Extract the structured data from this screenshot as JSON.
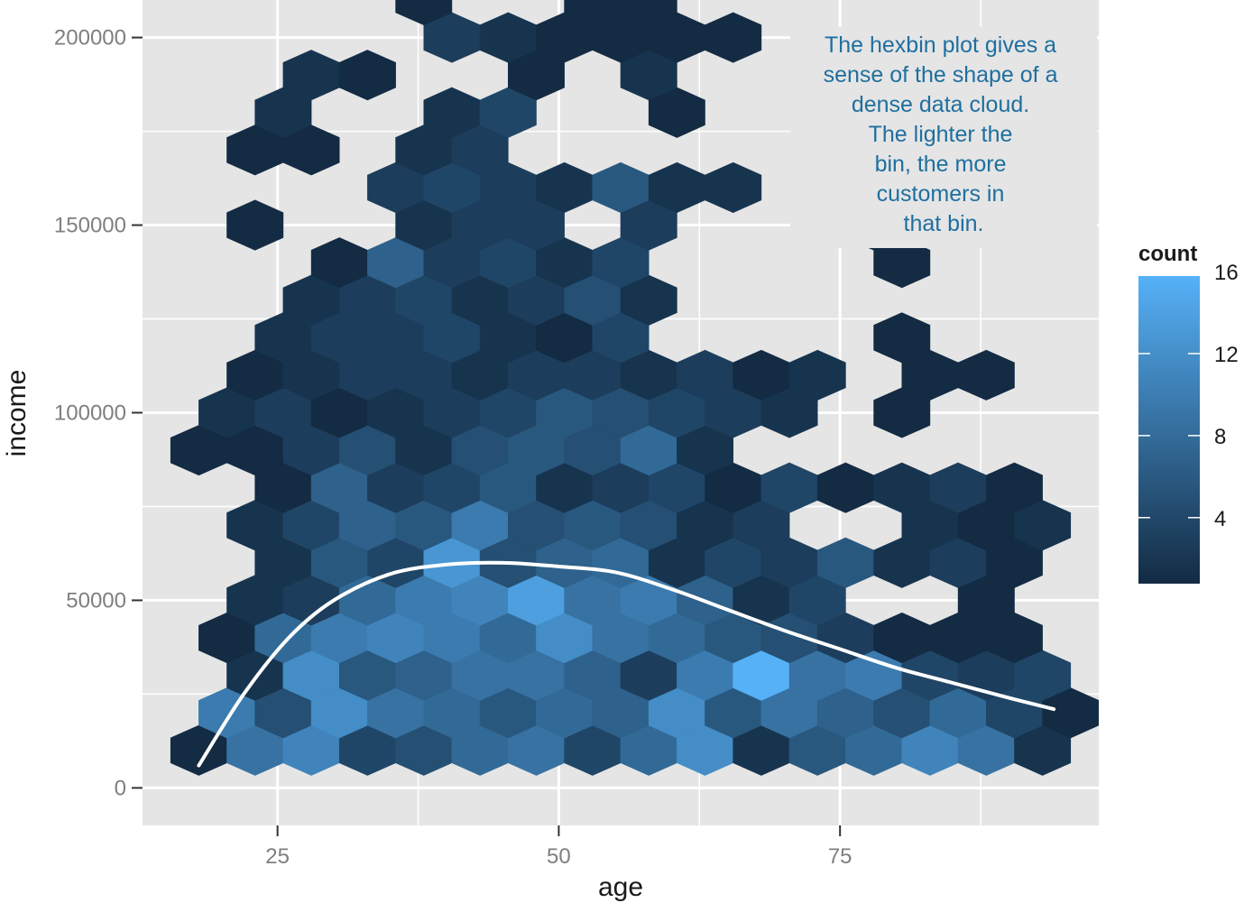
{
  "chart_data": {
    "type": "heatmap",
    "subtype": "hexbin",
    "xlabel": "age",
    "ylabel": "income",
    "xlim": [
      13,
      98
    ],
    "ylim": [
      -10000,
      210000
    ],
    "x_ticks": [
      25,
      50,
      75
    ],
    "x_tick_labels": [
      "25",
      "50",
      "75"
    ],
    "y_ticks": [
      0,
      50000,
      100000,
      150000,
      200000
    ],
    "y_tick_labels": [
      "0",
      "50000",
      "100000",
      "150000",
      "200000"
    ],
    "hex_grid": {
      "x0": 18,
      "dx": 5,
      "y0": 10000,
      "dy": 10000
    },
    "fill_scale": {
      "name": "count",
      "min": 1,
      "max": 16,
      "low_color": "#132B43",
      "high_color": "#56B1F7",
      "breaks": [
        4,
        8,
        12,
        16
      ]
    },
    "bins": [
      {
        "row": 0,
        "col": 0,
        "count": 1
      },
      {
        "row": 0,
        "col": 1,
        "count": 9
      },
      {
        "row": 0,
        "col": 2,
        "count": 11
      },
      {
        "row": 0,
        "col": 3,
        "count": 4
      },
      {
        "row": 0,
        "col": 4,
        "count": 5
      },
      {
        "row": 0,
        "col": 5,
        "count": 8
      },
      {
        "row": 0,
        "col": 6,
        "count": 9
      },
      {
        "row": 0,
        "col": 7,
        "count": 4
      },
      {
        "row": 0,
        "col": 8,
        "count": 8
      },
      {
        "row": 0,
        "col": 9,
        "count": 12
      },
      {
        "row": 0,
        "col": 10,
        "count": 2
      },
      {
        "row": 0,
        "col": 11,
        "count": 6
      },
      {
        "row": 0,
        "col": 12,
        "count": 8
      },
      {
        "row": 0,
        "col": 13,
        "count": 11
      },
      {
        "row": 0,
        "col": 14,
        "count": 9
      },
      {
        "row": 0,
        "col": 15,
        "count": 2
      },
      {
        "row": 1,
        "col": 0,
        "count": 10
      },
      {
        "row": 1,
        "col": 1,
        "count": 5
      },
      {
        "row": 1,
        "col": 2,
        "count": 12
      },
      {
        "row": 1,
        "col": 3,
        "count": 9
      },
      {
        "row": 1,
        "col": 4,
        "count": 8
      },
      {
        "row": 1,
        "col": 5,
        "count": 6
      },
      {
        "row": 1,
        "col": 6,
        "count": 8
      },
      {
        "row": 1,
        "col": 7,
        "count": 7
      },
      {
        "row": 1,
        "col": 8,
        "count": 12
      },
      {
        "row": 1,
        "col": 9,
        "count": 6
      },
      {
        "row": 1,
        "col": 10,
        "count": 9
      },
      {
        "row": 1,
        "col": 11,
        "count": 7
      },
      {
        "row": 1,
        "col": 12,
        "count": 5
      },
      {
        "row": 1,
        "col": 13,
        "count": 8
      },
      {
        "row": 1,
        "col": 14,
        "count": 4
      },
      {
        "row": 1,
        "col": 15,
        "count": 1
      },
      {
        "row": 2,
        "col": 1,
        "count": 2
      },
      {
        "row": 2,
        "col": 2,
        "count": 12
      },
      {
        "row": 2,
        "col": 3,
        "count": 6
      },
      {
        "row": 2,
        "col": 4,
        "count": 7
      },
      {
        "row": 2,
        "col": 5,
        "count": 9
      },
      {
        "row": 2,
        "col": 6,
        "count": 9
      },
      {
        "row": 2,
        "col": 7,
        "count": 7
      },
      {
        "row": 2,
        "col": 8,
        "count": 3
      },
      {
        "row": 2,
        "col": 9,
        "count": 10
      },
      {
        "row": 2,
        "col": 10,
        "count": 16
      },
      {
        "row": 2,
        "col": 11,
        "count": 9
      },
      {
        "row": 2,
        "col": 12,
        "count": 10
      },
      {
        "row": 2,
        "col": 13,
        "count": 4
      },
      {
        "row": 2,
        "col": 14,
        "count": 3
      },
      {
        "row": 2,
        "col": 15,
        "count": 4
      },
      {
        "row": 3,
        "col": 0,
        "count": 1
      },
      {
        "row": 3,
        "col": 1,
        "count": 8
      },
      {
        "row": 3,
        "col": 2,
        "count": 10
      },
      {
        "row": 3,
        "col": 3,
        "count": 11
      },
      {
        "row": 3,
        "col": 4,
        "count": 10
      },
      {
        "row": 3,
        "col": 5,
        "count": 8
      },
      {
        "row": 3,
        "col": 6,
        "count": 12
      },
      {
        "row": 3,
        "col": 7,
        "count": 9
      },
      {
        "row": 3,
        "col": 8,
        "count": 8
      },
      {
        "row": 3,
        "col": 9,
        "count": 6
      },
      {
        "row": 3,
        "col": 10,
        "count": 5
      },
      {
        "row": 3,
        "col": 11,
        "count": 3
      },
      {
        "row": 3,
        "col": 12,
        "count": 1
      },
      {
        "row": 3,
        "col": 13,
        "count": 1
      },
      {
        "row": 3,
        "col": 14,
        "count": 1
      },
      {
        "row": 4,
        "col": 1,
        "count": 2
      },
      {
        "row": 4,
        "col": 2,
        "count": 3
      },
      {
        "row": 4,
        "col": 3,
        "count": 8
      },
      {
        "row": 4,
        "col": 4,
        "count": 10
      },
      {
        "row": 4,
        "col": 5,
        "count": 11
      },
      {
        "row": 4,
        "col": 6,
        "count": 14
      },
      {
        "row": 4,
        "col": 7,
        "count": 9
      },
      {
        "row": 4,
        "col": 8,
        "count": 10
      },
      {
        "row": 4,
        "col": 9,
        "count": 7
      },
      {
        "row": 4,
        "col": 10,
        "count": 2
      },
      {
        "row": 4,
        "col": 11,
        "count": 4
      },
      {
        "row": 4,
        "col": 14,
        "count": 1
      },
      {
        "row": 5,
        "col": 1,
        "count": 2
      },
      {
        "row": 5,
        "col": 2,
        "count": 6
      },
      {
        "row": 5,
        "col": 3,
        "count": 4
      },
      {
        "row": 5,
        "col": 4,
        "count": 13
      },
      {
        "row": 5,
        "col": 5,
        "count": 5
      },
      {
        "row": 5,
        "col": 6,
        "count": 7
      },
      {
        "row": 5,
        "col": 7,
        "count": 8
      },
      {
        "row": 5,
        "col": 8,
        "count": 2
      },
      {
        "row": 5,
        "col": 9,
        "count": 4
      },
      {
        "row": 5,
        "col": 10,
        "count": 3
      },
      {
        "row": 5,
        "col": 11,
        "count": 6
      },
      {
        "row": 5,
        "col": 12,
        "count": 2
      },
      {
        "row": 5,
        "col": 13,
        "count": 3
      },
      {
        "row": 5,
        "col": 14,
        "count": 1
      },
      {
        "row": 6,
        "col": 1,
        "count": 2
      },
      {
        "row": 6,
        "col": 2,
        "count": 4
      },
      {
        "row": 6,
        "col": 3,
        "count": 7
      },
      {
        "row": 6,
        "col": 4,
        "count": 6
      },
      {
        "row": 6,
        "col": 5,
        "count": 10
      },
      {
        "row": 6,
        "col": 6,
        "count": 5
      },
      {
        "row": 6,
        "col": 7,
        "count": 6
      },
      {
        "row": 6,
        "col": 8,
        "count": 5
      },
      {
        "row": 6,
        "col": 9,
        "count": 2
      },
      {
        "row": 6,
        "col": 10,
        "count": 3
      },
      {
        "row": 6,
        "col": 13,
        "count": 2
      },
      {
        "row": 6,
        "col": 14,
        "count": 1
      },
      {
        "row": 6,
        "col": 15,
        "count": 2
      },
      {
        "row": 7,
        "col": 1,
        "count": 1
      },
      {
        "row": 7,
        "col": 2,
        "count": 7
      },
      {
        "row": 7,
        "col": 3,
        "count": 3
      },
      {
        "row": 7,
        "col": 4,
        "count": 4
      },
      {
        "row": 7,
        "col": 5,
        "count": 6
      },
      {
        "row": 7,
        "col": 6,
        "count": 2
      },
      {
        "row": 7,
        "col": 7,
        "count": 3
      },
      {
        "row": 7,
        "col": 8,
        "count": 4
      },
      {
        "row": 7,
        "col": 9,
        "count": 1
      },
      {
        "row": 7,
        "col": 10,
        "count": 4
      },
      {
        "row": 7,
        "col": 11,
        "count": 1
      },
      {
        "row": 7,
        "col": 12,
        "count": 2
      },
      {
        "row": 7,
        "col": 13,
        "count": 3
      },
      {
        "row": 7,
        "col": 14,
        "count": 1
      },
      {
        "row": 8,
        "col": 0,
        "count": 1
      },
      {
        "row": 8,
        "col": 1,
        "count": 1
      },
      {
        "row": 8,
        "col": 2,
        "count": 3
      },
      {
        "row": 8,
        "col": 3,
        "count": 5
      },
      {
        "row": 8,
        "col": 4,
        "count": 2
      },
      {
        "row": 8,
        "col": 5,
        "count": 5
      },
      {
        "row": 8,
        "col": 6,
        "count": 6
      },
      {
        "row": 8,
        "col": 7,
        "count": 5
      },
      {
        "row": 8,
        "col": 8,
        "count": 8
      },
      {
        "row": 8,
        "col": 9,
        "count": 2
      },
      {
        "row": 9,
        "col": 0,
        "count": 2
      },
      {
        "row": 9,
        "col": 1,
        "count": 3
      },
      {
        "row": 9,
        "col": 2,
        "count": 1
      },
      {
        "row": 9,
        "col": 3,
        "count": 2
      },
      {
        "row": 9,
        "col": 4,
        "count": 3
      },
      {
        "row": 9,
        "col": 5,
        "count": 4
      },
      {
        "row": 9,
        "col": 6,
        "count": 6
      },
      {
        "row": 9,
        "col": 7,
        "count": 5
      },
      {
        "row": 9,
        "col": 8,
        "count": 4
      },
      {
        "row": 9,
        "col": 9,
        "count": 3
      },
      {
        "row": 9,
        "col": 10,
        "count": 2
      },
      {
        "row": 9,
        "col": 12,
        "count": 1
      },
      {
        "row": 10,
        "col": 1,
        "count": 1
      },
      {
        "row": 10,
        "col": 2,
        "count": 2
      },
      {
        "row": 10,
        "col": 3,
        "count": 3
      },
      {
        "row": 10,
        "col": 4,
        "count": 3
      },
      {
        "row": 10,
        "col": 5,
        "count": 2
      },
      {
        "row": 10,
        "col": 6,
        "count": 3
      },
      {
        "row": 10,
        "col": 7,
        "count": 3
      },
      {
        "row": 10,
        "col": 8,
        "count": 2
      },
      {
        "row": 10,
        "col": 9,
        "count": 3
      },
      {
        "row": 10,
        "col": 10,
        "count": 1
      },
      {
        "row": 10,
        "col": 11,
        "count": 2
      },
      {
        "row": 10,
        "col": 13,
        "count": 1
      },
      {
        "row": 10,
        "col": 14,
        "count": 1
      },
      {
        "row": 11,
        "col": 1,
        "count": 2
      },
      {
        "row": 11,
        "col": 2,
        "count": 3
      },
      {
        "row": 11,
        "col": 3,
        "count": 3
      },
      {
        "row": 11,
        "col": 4,
        "count": 4
      },
      {
        "row": 11,
        "col": 5,
        "count": 2
      },
      {
        "row": 11,
        "col": 6,
        "count": 1
      },
      {
        "row": 11,
        "col": 7,
        "count": 4
      },
      {
        "row": 11,
        "col": 12,
        "count": 1
      },
      {
        "row": 12,
        "col": 2,
        "count": 2
      },
      {
        "row": 12,
        "col": 3,
        "count": 3
      },
      {
        "row": 12,
        "col": 4,
        "count": 4
      },
      {
        "row": 12,
        "col": 5,
        "count": 2
      },
      {
        "row": 12,
        "col": 6,
        "count": 3
      },
      {
        "row": 12,
        "col": 7,
        "count": 5
      },
      {
        "row": 12,
        "col": 8,
        "count": 2
      },
      {
        "row": 13,
        "col": 2,
        "count": 1
      },
      {
        "row": 13,
        "col": 3,
        "count": 7
      },
      {
        "row": 13,
        "col": 4,
        "count": 3
      },
      {
        "row": 13,
        "col": 5,
        "count": 4
      },
      {
        "row": 13,
        "col": 6,
        "count": 2
      },
      {
        "row": 13,
        "col": 7,
        "count": 4
      },
      {
        "row": 13,
        "col": 12,
        "count": 1
      },
      {
        "row": 14,
        "col": 1,
        "count": 1
      },
      {
        "row": 14,
        "col": 4,
        "count": 2
      },
      {
        "row": 14,
        "col": 5,
        "count": 3
      },
      {
        "row": 14,
        "col": 6,
        "count": 3
      },
      {
        "row": 14,
        "col": 8,
        "count": 3
      },
      {
        "row": 14,
        "col": 12,
        "count": 1
      },
      {
        "row": 15,
        "col": 3,
        "count": 3
      },
      {
        "row": 15,
        "col": 4,
        "count": 4
      },
      {
        "row": 15,
        "col": 5,
        "count": 3
      },
      {
        "row": 15,
        "col": 6,
        "count": 2
      },
      {
        "row": 15,
        "col": 7,
        "count": 6
      },
      {
        "row": 15,
        "col": 8,
        "count": 2
      },
      {
        "row": 15,
        "col": 9,
        "count": 2
      },
      {
        "row": 16,
        "col": 1,
        "count": 1
      },
      {
        "row": 16,
        "col": 2,
        "count": 1
      },
      {
        "row": 16,
        "col": 4,
        "count": 2
      },
      {
        "row": 16,
        "col": 5,
        "count": 3
      },
      {
        "row": 17,
        "col": 1,
        "count": 2
      },
      {
        "row": 17,
        "col": 4,
        "count": 2
      },
      {
        "row": 17,
        "col": 5,
        "count": 4
      },
      {
        "row": 17,
        "col": 8,
        "count": 1
      },
      {
        "row": 18,
        "col": 2,
        "count": 2
      },
      {
        "row": 18,
        "col": 3,
        "count": 1
      },
      {
        "row": 18,
        "col": 6,
        "count": 1
      },
      {
        "row": 18,
        "col": 8,
        "count": 2
      },
      {
        "row": 19,
        "col": 4,
        "count": 3
      },
      {
        "row": 19,
        "col": 5,
        "count": 2
      },
      {
        "row": 19,
        "col": 6,
        "count": 1
      },
      {
        "row": 19,
        "col": 7,
        "count": 1
      },
      {
        "row": 19,
        "col": 8,
        "count": 1
      },
      {
        "row": 19,
        "col": 9,
        "count": 1
      },
      {
        "row": 20,
        "col": 4,
        "count": 1
      },
      {
        "row": 20,
        "col": 7,
        "count": 1
      },
      {
        "row": 20,
        "col": 8,
        "count": 1
      },
      {
        "row": 21,
        "col": 2,
        "count": 1
      },
      {
        "row": 21,
        "col": 3,
        "count": 1
      },
      {
        "row": 21,
        "col": 7,
        "count": 1
      }
    ],
    "smooth_line": {
      "color": "#ffffff",
      "points": [
        [
          18,
          6000
        ],
        [
          22,
          25000
        ],
        [
          26,
          40000
        ],
        [
          30,
          50000
        ],
        [
          35,
          57000
        ],
        [
          40,
          59500
        ],
        [
          45,
          60000
        ],
        [
          50,
          59000
        ],
        [
          55,
          57500
        ],
        [
          60,
          53000
        ],
        [
          65,
          47500
        ],
        [
          70,
          42000
        ],
        [
          75,
          37000
        ],
        [
          80,
          32000
        ],
        [
          85,
          28000
        ],
        [
          90,
          24000
        ],
        [
          94,
          21000
        ]
      ]
    },
    "annotation": {
      "lines": [
        "The hexbin plot gives a",
        "sense of the shape of a",
        "dense data cloud.",
        "The lighter the",
        "bin, the more",
        "customers in",
        "that bin."
      ],
      "color": "#1f6f9f"
    }
  }
}
